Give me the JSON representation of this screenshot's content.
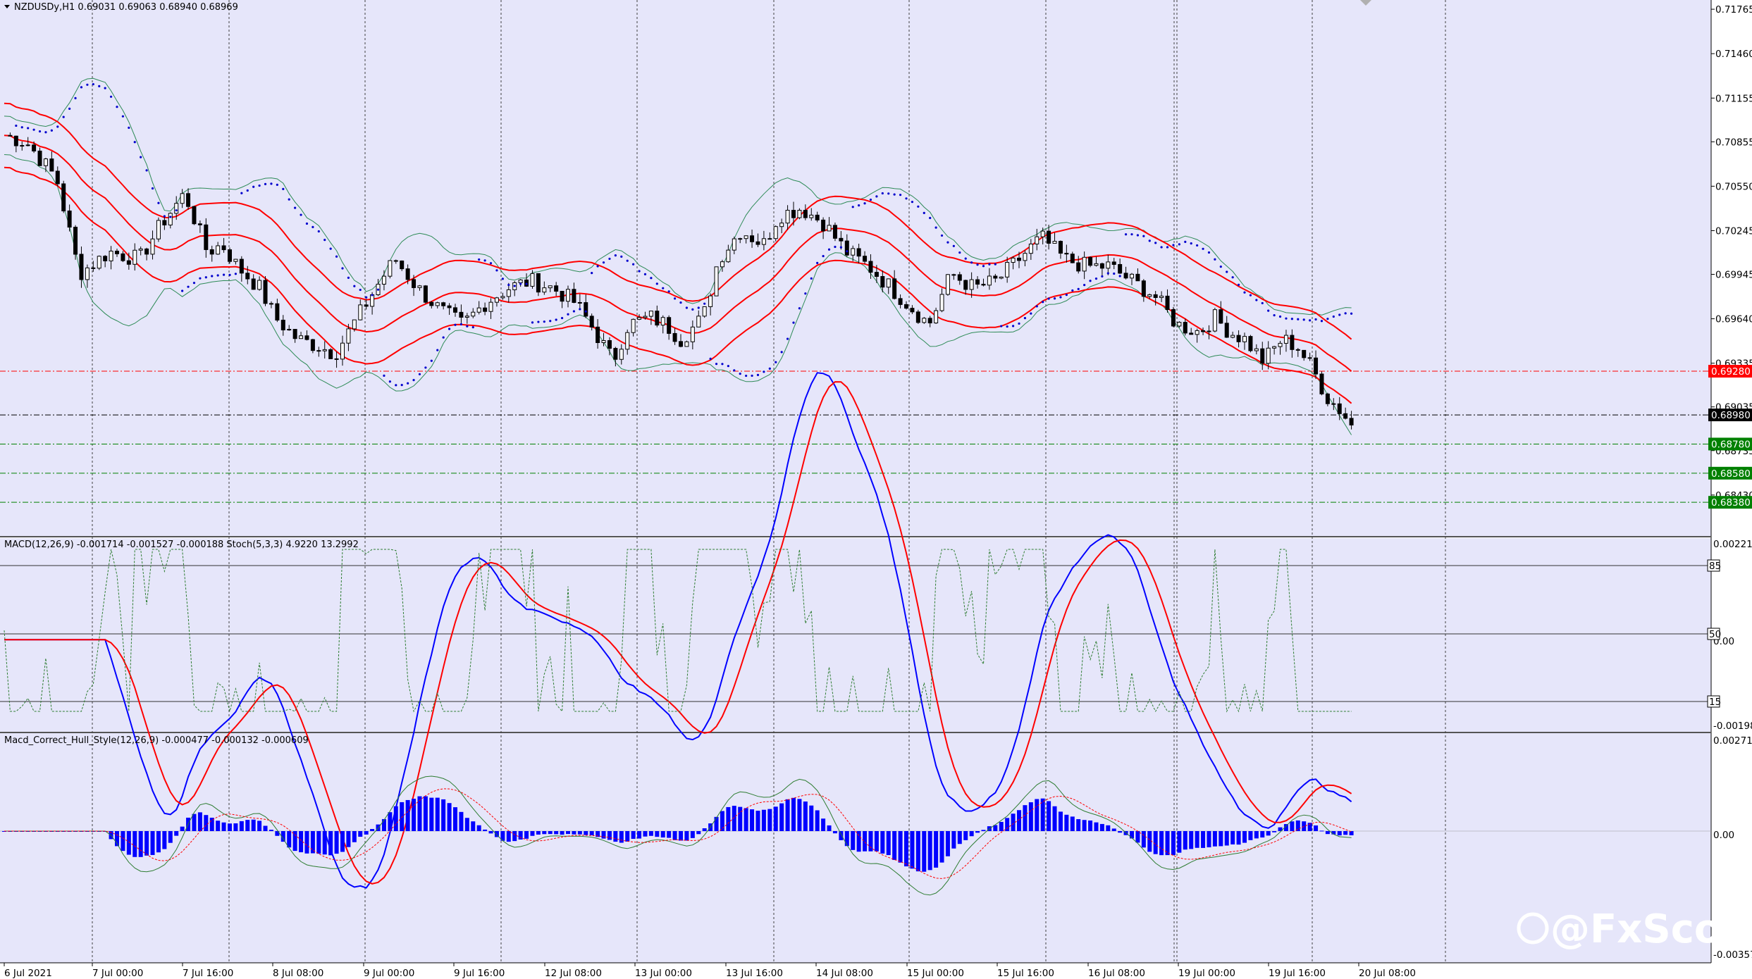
{
  "chart_data": {
    "type": "candlestick",
    "symbol_header": "NZDUSDy,H1  0.69031 0.69063 0.68940 0.68969",
    "price_axis": [
      "0.71765",
      "0.71460",
      "0.71155",
      "0.70855",
      "0.70550",
      "0.70245",
      "0.69945",
      "0.69640",
      "0.69335",
      "0.69035",
      "0.68735",
      "0.68430"
    ],
    "price_range": [
      0.6826,
      0.7178
    ],
    "price_tags": [
      {
        "label": "0.69280",
        "value": 0.6928,
        "color": "#ff0000",
        "line": "dashdot"
      },
      {
        "label": "0.68980",
        "value": 0.6898,
        "color": "#000000",
        "line": "dashdot"
      },
      {
        "label": "0.68780",
        "value": 0.6878,
        "color": "#008000",
        "line": "dashdot"
      },
      {
        "label": "0.68580",
        "value": 0.6858,
        "color": "#008000",
        "line": "dashdot"
      },
      {
        "label": "0.68380",
        "value": 0.6838,
        "color": "#008000",
        "line": "dashdot"
      }
    ],
    "time_labels": [
      "6 Jul 2021",
      "7 Jul 00:00",
      "7 Jul 16:00",
      "8 Jul 08:00",
      "9 Jul 00:00",
      "9 Jul 16:00",
      "12 Jul 08:00",
      "13 Jul 00:00",
      "13 Jul 16:00",
      "14 Jul 08:00",
      "15 Jul 00:00",
      "15 Jul 16:00",
      "16 Jul 08:00",
      "19 Jul 00:00",
      "19 Jul 16:00",
      "20 Jul 08:00"
    ],
    "price_path": [
      [
        0,
        0.709
      ],
      [
        6,
        0.7085
      ],
      [
        14,
        0.706
      ],
      [
        20,
        0.6995
      ],
      [
        28,
        0.701
      ],
      [
        36,
        0.7005
      ],
      [
        42,
        0.703
      ],
      [
        48,
        0.705
      ],
      [
        54,
        0.701
      ],
      [
        58,
        0.7015
      ],
      [
        62,
        0.7
      ],
      [
        68,
        0.6985
      ],
      [
        72,
        0.6965
      ],
      [
        78,
        0.695
      ],
      [
        84,
        0.6945
      ],
      [
        88,
        0.694
      ],
      [
        94,
        0.6965
      ],
      [
        100,
        0.699
      ],
      [
        104,
        0.7005
      ],
      [
        110,
        0.6985
      ],
      [
        116,
        0.697
      ],
      [
        122,
        0.696
      ],
      [
        128,
        0.6975
      ],
      [
        134,
        0.6985
      ],
      [
        140,
        0.699
      ],
      [
        146,
        0.6985
      ],
      [
        152,
        0.6975
      ],
      [
        156,
        0.696
      ],
      [
        162,
        0.6935
      ],
      [
        166,
        0.696
      ],
      [
        172,
        0.6965
      ],
      [
        176,
        0.696
      ],
      [
        180,
        0.695
      ],
      [
        186,
        0.6965
      ],
      [
        190,
        0.7005
      ],
      [
        196,
        0.7025
      ],
      [
        202,
        0.7015
      ],
      [
        206,
        0.7035
      ],
      [
        212,
        0.704
      ],
      [
        218,
        0.703
      ],
      [
        224,
        0.701
      ],
      [
        230,
        0.7
      ],
      [
        236,
        0.6985
      ],
      [
        242,
        0.697
      ],
      [
        246,
        0.696
      ],
      [
        252,
        0.6995
      ],
      [
        258,
        0.6985
      ],
      [
        264,
        0.699
      ],
      [
        270,
        0.7005
      ],
      [
        276,
        0.702
      ],
      [
        282,
        0.7005
      ],
      [
        288,
        0.7
      ],
      [
        294,
        0.7
      ],
      [
        300,
        0.699
      ],
      [
        306,
        0.698
      ],
      [
        312,
        0.696
      ],
      [
        318,
        0.6955
      ],
      [
        322,
        0.6965
      ],
      [
        326,
        0.6955
      ],
      [
        330,
        0.695
      ],
      [
        335,
        0.6935
      ],
      [
        340,
        0.695
      ],
      [
        344,
        0.6945
      ],
      [
        348,
        0.693
      ],
      [
        352,
        0.691
      ],
      [
        356,
        0.69
      ],
      [
        360,
        0.6885
      ]
    ],
    "macd_panel": {
      "header": "MACD(12,26,9) -0.001714 -0.001527 -0.000188  Stoch(5,3,3) 4.9220 13.2992",
      "axis": [
        "0.002214",
        "0.00",
        "-0.001982"
      ],
      "levels": [
        "85",
        "50",
        "15"
      ],
      "macd_line_color": "#0000ff",
      "signal_line_color": "#ff0000",
      "stoch_color": "#2e7d32"
    },
    "hull_panel": {
      "header": "Macd_Correct_Hull_Style(12,26,9) -0.000477 -0.000132 -0.000609",
      "axis": [
        "0.002715",
        "0.00",
        "-0.003574"
      ],
      "histogram_color": "#0000ff"
    },
    "watermark": "@FxScotty",
    "colors": {
      "background": "#e6e6fa",
      "bollinger_outer": "#2e8b57",
      "envelope": "#ff0000",
      "sar": "#0000cd",
      "bull": "#ffffff",
      "bear": "#000000"
    }
  }
}
